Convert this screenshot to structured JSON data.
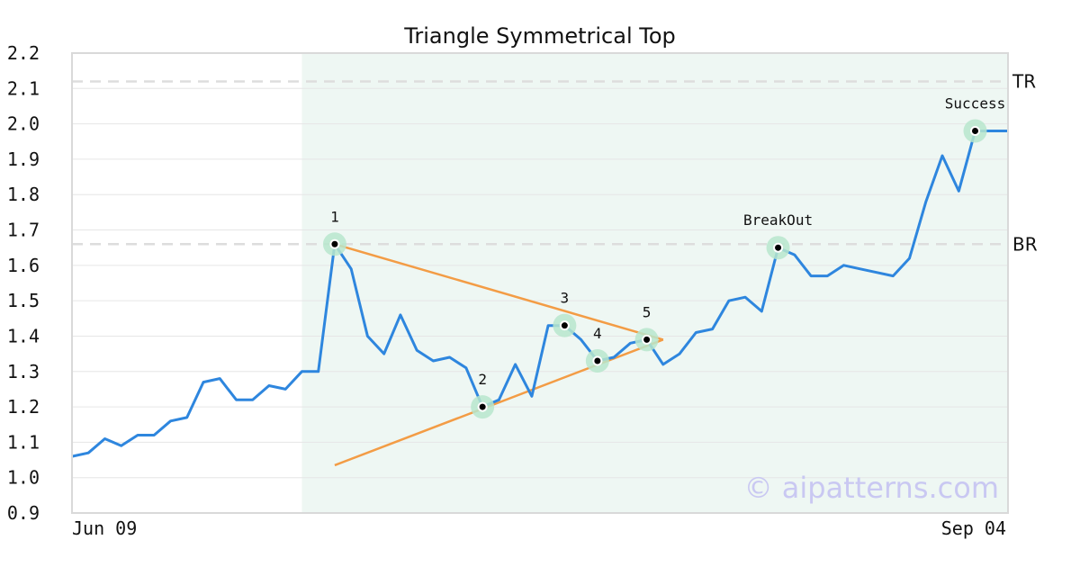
{
  "chart_data": {
    "type": "line",
    "title": "Triangle Symmetrical Top",
    "x_start_label": "Jun 09",
    "x_end_label": "Sep 04",
    "ylim": [
      0.9,
      2.2
    ],
    "y_ticks": [
      "0.9",
      "1.0",
      "1.1",
      "1.2",
      "1.3",
      "1.4",
      "1.5",
      "1.6",
      "1.7",
      "1.8",
      "1.9",
      "2.0",
      "2.1",
      "2.2"
    ],
    "grid": true,
    "series": [
      {
        "color": "#2e86de",
        "values": [
          1.06,
          1.07,
          1.11,
          1.09,
          1.12,
          1.12,
          1.16,
          1.17,
          1.27,
          1.28,
          1.22,
          1.22,
          1.26,
          1.25,
          1.3,
          1.3,
          1.66,
          1.59,
          1.4,
          1.35,
          1.46,
          1.36,
          1.33,
          1.34,
          1.31,
          1.2,
          1.22,
          1.32,
          1.23,
          1.43,
          1.43,
          1.39,
          1.33,
          1.34,
          1.38,
          1.39,
          1.32,
          1.35,
          1.41,
          1.42,
          1.5,
          1.51,
          1.47,
          1.65,
          1.63,
          1.57,
          1.57,
          1.6,
          1.59,
          1.58,
          1.57,
          1.62,
          1.78,
          1.91,
          1.81,
          1.98,
          1.98,
          1.98
        ]
      }
    ],
    "highlight_range": [
      14,
      57
    ],
    "levels": [
      {
        "label": "TR",
        "value": 2.12
      },
      {
        "label": "BR",
        "value": 1.66
      }
    ],
    "key_points": [
      {
        "label": "1",
        "index": 16,
        "value": 1.66
      },
      {
        "label": "2",
        "index": 25,
        "value": 1.2
      },
      {
        "label": "3",
        "index": 30,
        "value": 1.43
      },
      {
        "label": "4",
        "index": 32,
        "value": 1.33
      },
      {
        "label": "5",
        "index": 35,
        "value": 1.39
      },
      {
        "label": "BreakOut",
        "index": 43,
        "value": 1.65
      },
      {
        "label": "Success",
        "index": 55,
        "value": 1.98
      }
    ],
    "trendlines": [
      {
        "from": {
          "index": 16,
          "value": 1.66
        },
        "to": {
          "index": 36,
          "value": 1.39
        }
      },
      {
        "from": {
          "index": 16,
          "value": 1.035
        },
        "to": {
          "index": 36,
          "value": 1.39
        }
      }
    ],
    "colors": {
      "line": "#2e86de",
      "trendline": "#f39c45",
      "highlight": "#eef7f3",
      "marker_halo": "#b7e6cd",
      "level": "#dddddd"
    },
    "watermark": "© aipatterns.com"
  }
}
